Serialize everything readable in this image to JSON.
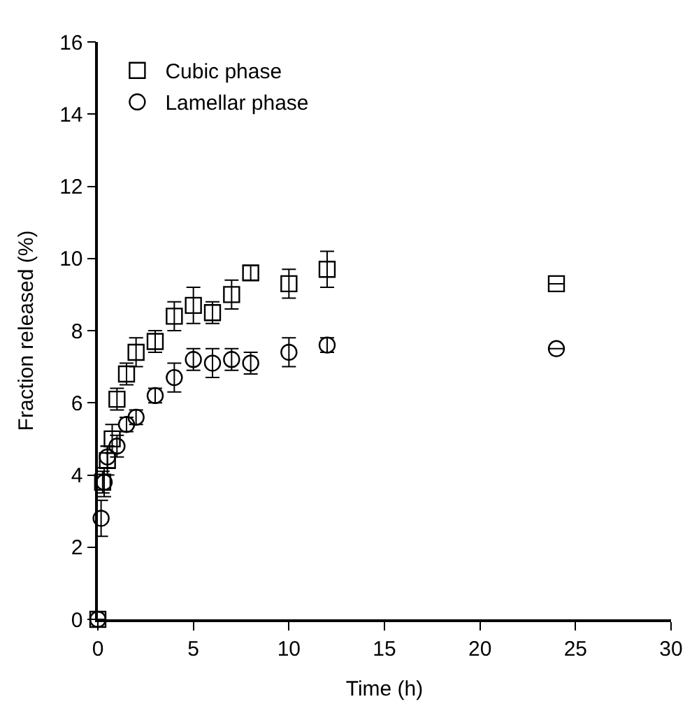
{
  "chart_data": {
    "type": "scatter",
    "xlabel": "Time (h)",
    "ylabel": "Fraction released (%)",
    "xlim": [
      0,
      30
    ],
    "ylim": [
      0,
      16
    ],
    "xticks": [
      0,
      5,
      10,
      15,
      20,
      25,
      30
    ],
    "yticks": [
      0,
      2,
      4,
      6,
      8,
      10,
      12,
      14,
      16
    ],
    "legend": "top left",
    "series": [
      {
        "name": "Cubic phase",
        "color": "#000000",
        "marker": "square",
        "x": [
          0,
          0.25,
          0.5,
          0.75,
          1,
          1.5,
          2,
          3,
          4,
          5,
          6,
          7,
          8,
          10,
          12,
          24
        ],
        "values": [
          0,
          3.8,
          4.4,
          5.0,
          6.1,
          6.8,
          7.4,
          7.7,
          8.4,
          8.7,
          8.5,
          9.0,
          9.6,
          9.3,
          9.7,
          9.3
        ],
        "errors": [
          null,
          0.3,
          0.4,
          0.4,
          0.3,
          0.3,
          0.4,
          0.3,
          0.4,
          0.5,
          0.3,
          0.4,
          0.2,
          0.4,
          0.5,
          null
        ]
      },
      {
        "name": "Lamellar phase",
        "color": "#000000",
        "marker": "circle",
        "x": [
          0,
          0.17,
          0.33,
          0.5,
          1,
          1.5,
          2,
          3,
          4,
          5,
          6,
          7,
          8,
          10,
          12,
          24
        ],
        "values": [
          0,
          2.8,
          3.8,
          4.5,
          4.8,
          5.4,
          5.6,
          6.2,
          6.7,
          7.2,
          7.1,
          7.2,
          7.1,
          7.4,
          7.6,
          7.5
        ],
        "errors": [
          null,
          0.5,
          0.4,
          0.3,
          0.3,
          0.2,
          0.2,
          0.2,
          0.4,
          0.3,
          0.4,
          0.3,
          0.3,
          0.4,
          0.2,
          null
        ]
      }
    ]
  }
}
